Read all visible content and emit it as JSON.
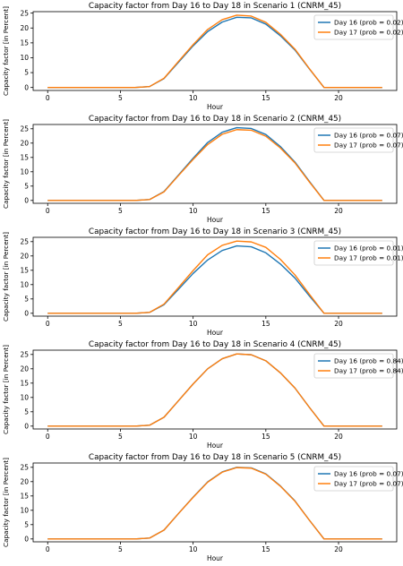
{
  "chart_data": [
    {
      "type": "line",
      "title": "Capacity factor from Day 16 to Day 18 in Scenario 1 (CNRM_45)",
      "xlabel": "Hour",
      "ylabel": "Capacity factor [in Percent]",
      "xlim": [
        -1,
        24
      ],
      "ylim": [
        -1,
        25.5
      ],
      "xticks": [
        0,
        5,
        10,
        15,
        20
      ],
      "yticks": [
        0,
        5,
        10,
        15,
        20,
        25
      ],
      "grid": false,
      "legend_position": "top-right",
      "x": [
        0,
        1,
        2,
        3,
        4,
        5,
        6,
        7,
        8,
        9,
        10,
        11,
        12,
        13,
        14,
        15,
        16,
        17,
        18,
        19,
        20,
        21,
        22,
        23
      ],
      "series": [
        {
          "name": "Day 16 (prob = 0.02)",
          "color": "#1f77b4",
          "values": [
            0,
            0,
            0,
            0,
            0,
            0,
            0,
            0.3,
            3.0,
            8.5,
            14.0,
            18.8,
            22.0,
            23.6,
            23.4,
            21.3,
            17.4,
            12.6,
            6.2,
            0,
            0,
            0,
            0,
            0
          ]
        },
        {
          "name": "Day 17 (prob = 0.02)",
          "color": "#ff7f0e",
          "values": [
            0,
            0,
            0,
            0,
            0,
            0,
            0,
            0.3,
            3.1,
            8.8,
            14.4,
            19.5,
            22.8,
            24.3,
            24.0,
            21.9,
            17.9,
            12.9,
            6.3,
            0,
            0,
            0,
            0,
            0
          ]
        }
      ]
    },
    {
      "type": "line",
      "title": "Capacity factor from Day 16 to Day 18 in Scenario 2 (CNRM_45)",
      "xlabel": "Hour",
      "ylabel": "Capacity factor [in Percent]",
      "xlim": [
        -1,
        24
      ],
      "ylim": [
        -1,
        26.5
      ],
      "xticks": [
        0,
        5,
        10,
        15,
        20
      ],
      "yticks": [
        0,
        5,
        10,
        15,
        20,
        25
      ],
      "grid": false,
      "legend_position": "top-right",
      "x": [
        0,
        1,
        2,
        3,
        4,
        5,
        6,
        7,
        8,
        9,
        10,
        11,
        12,
        13,
        14,
        15,
        16,
        17,
        18,
        19,
        20,
        21,
        22,
        23
      ],
      "series": [
        {
          "name": "Day 16 (prob = 0.07)",
          "color": "#1f77b4",
          "values": [
            0,
            0,
            0,
            0,
            0,
            0,
            0,
            0.3,
            3.1,
            8.9,
            14.7,
            20.2,
            23.8,
            25.4,
            25.1,
            23.0,
            18.8,
            13.4,
            6.6,
            0,
            0,
            0,
            0,
            0
          ]
        },
        {
          "name": "Day 17 (prob = 0.07)",
          "color": "#ff7f0e",
          "values": [
            0,
            0,
            0,
            0,
            0,
            0,
            0,
            0.3,
            3.0,
            8.7,
            14.3,
            19.5,
            23.1,
            24.7,
            24.5,
            22.4,
            18.3,
            13.1,
            6.4,
            0,
            0,
            0,
            0,
            0
          ]
        }
      ]
    },
    {
      "type": "line",
      "title": "Capacity factor from Day 16 to Day 18 in Scenario 3 (CNRM_45)",
      "xlabel": "Hour",
      "ylabel": "Capacity factor [in Percent]",
      "xlim": [
        -1,
        24
      ],
      "ylim": [
        -1,
        26.5
      ],
      "xticks": [
        0,
        5,
        10,
        15,
        20
      ],
      "yticks": [
        0,
        5,
        10,
        15,
        20,
        25
      ],
      "grid": false,
      "legend_position": "top-right",
      "x": [
        0,
        1,
        2,
        3,
        4,
        5,
        6,
        7,
        8,
        9,
        10,
        11,
        12,
        13,
        14,
        15,
        16,
        17,
        18,
        19,
        20,
        21,
        22,
        23
      ],
      "series": [
        {
          "name": "Day 16 (prob = 0.01)",
          "color": "#1f77b4",
          "values": [
            0,
            0,
            0,
            0,
            0,
            0,
            0,
            0.3,
            3.0,
            8.4,
            13.9,
            18.6,
            21.9,
            23.5,
            23.2,
            21.1,
            17.2,
            12.3,
            6.0,
            0,
            0,
            0,
            0,
            0
          ]
        },
        {
          "name": "Day 17 (prob = 0.01)",
          "color": "#ff7f0e",
          "values": [
            0,
            0,
            0,
            0,
            0,
            0,
            0,
            0.3,
            3.2,
            9.0,
            14.9,
            20.4,
            23.7,
            25.2,
            24.9,
            23.0,
            18.8,
            13.4,
            6.6,
            0,
            0,
            0,
            0,
            0
          ]
        }
      ]
    },
    {
      "type": "line",
      "title": "Capacity factor from Day 16 to Day 18 in Scenario 4 (CNRM_45)",
      "xlabel": "Hour",
      "ylabel": "Capacity factor [in Percent]",
      "xlim": [
        -1,
        24
      ],
      "ylim": [
        -1,
        26.5
      ],
      "xticks": [
        0,
        5,
        10,
        15,
        20
      ],
      "yticks": [
        0,
        5,
        10,
        15,
        20,
        25
      ],
      "grid": false,
      "legend_position": "top-right",
      "x": [
        0,
        1,
        2,
        3,
        4,
        5,
        6,
        7,
        8,
        9,
        10,
        11,
        12,
        13,
        14,
        15,
        16,
        17,
        18,
        19,
        20,
        21,
        22,
        23
      ],
      "series": [
        {
          "name": "Day 16 (prob = 0.84)",
          "color": "#1f77b4",
          "values": [
            0,
            0,
            0,
            0,
            0,
            0,
            0,
            0.3,
            3.1,
            8.9,
            14.7,
            20.0,
            23.5,
            25.2,
            24.9,
            22.8,
            18.6,
            13.3,
            6.5,
            0,
            0,
            0,
            0,
            0
          ]
        },
        {
          "name": "Day 17 (prob = 0.84)",
          "color": "#ff7f0e",
          "values": [
            0,
            0,
            0,
            0,
            0,
            0,
            0,
            0.3,
            3.1,
            8.9,
            14.7,
            20.0,
            23.5,
            25.2,
            24.9,
            22.8,
            18.6,
            13.3,
            6.5,
            0,
            0,
            0,
            0,
            0
          ]
        }
      ]
    },
    {
      "type": "line",
      "title": "Capacity factor from Day 16 to Day 18 in Scenario 5 (CNRM_45)",
      "xlabel": "Hour",
      "ylabel": "Capacity factor [in Percent]",
      "xlim": [
        -1,
        24
      ],
      "ylim": [
        -1,
        26.5
      ],
      "xticks": [
        0,
        5,
        10,
        15,
        20
      ],
      "yticks": [
        0,
        5,
        10,
        15,
        20,
        25
      ],
      "grid": false,
      "legend_position": "top-right",
      "x": [
        0,
        1,
        2,
        3,
        4,
        5,
        6,
        7,
        8,
        9,
        10,
        11,
        12,
        13,
        14,
        15,
        16,
        17,
        18,
        19,
        20,
        21,
        22,
        23
      ],
      "series": [
        {
          "name": "Day 16 (prob = 0.07)",
          "color": "#1f77b4",
          "values": [
            0,
            0,
            0,
            0,
            0,
            0,
            0,
            0.3,
            3.1,
            8.9,
            14.6,
            19.9,
            23.4,
            25.0,
            24.8,
            22.7,
            18.5,
            13.3,
            6.5,
            0,
            0,
            0,
            0,
            0
          ]
        },
        {
          "name": "Day 17 (prob = 0.07)",
          "color": "#ff7f0e",
          "values": [
            0,
            0,
            0,
            0,
            0,
            0,
            0,
            0.3,
            3.1,
            8.9,
            14.5,
            19.8,
            23.3,
            24.9,
            24.7,
            22.6,
            18.4,
            13.2,
            6.5,
            0,
            0,
            0,
            0,
            0
          ]
        }
      ]
    }
  ]
}
